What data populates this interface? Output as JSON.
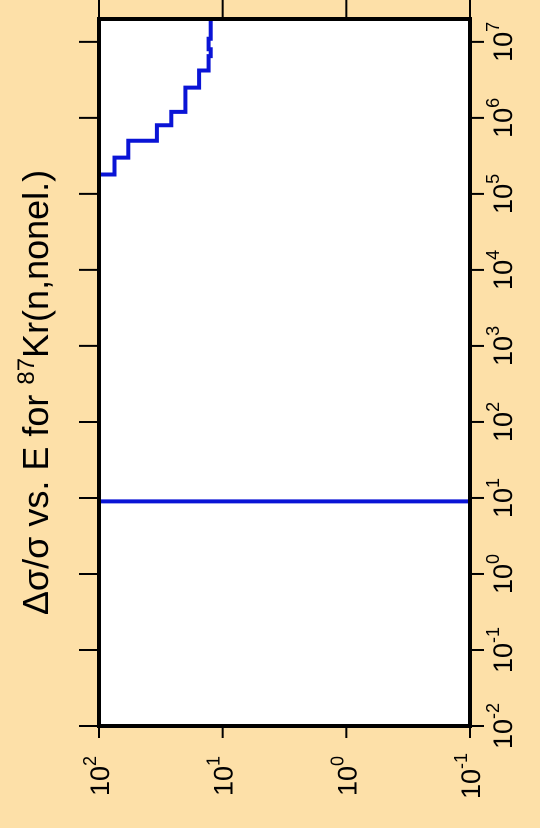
{
  "chart_data": {
    "type": "line",
    "orientation": "rotated-90-ccw",
    "title": {
      "prefix": "Δσ/σ vs. E for ",
      "isotope_mass": "87",
      "element": "Kr",
      "reaction": "(n,nonel.)"
    },
    "x_axis": {
      "scale": "log",
      "range": [
        0.01,
        20000000
      ],
      "tick_labels": [
        {
          "base": "10",
          "exp": "-2",
          "value": 0.01
        },
        {
          "base": "10",
          "exp": "-1",
          "value": 0.1
        },
        {
          "base": "10",
          "exp": "0",
          "value": 1
        },
        {
          "base": "10",
          "exp": "1",
          "value": 10
        },
        {
          "base": "10",
          "exp": "2",
          "value": 100
        },
        {
          "base": "10",
          "exp": "3",
          "value": 1000
        },
        {
          "base": "10",
          "exp": "4",
          "value": 10000
        },
        {
          "base": "10",
          "exp": "5",
          "value": 100000
        },
        {
          "base": "10",
          "exp": "6",
          "value": 1000000
        },
        {
          "base": "10",
          "exp": "7",
          "value": 10000000
        }
      ]
    },
    "y_axis": {
      "scale": "log",
      "range": [
        0.1,
        100
      ],
      "tick_labels": [
        {
          "base": "10",
          "exp": "-1",
          "value": 0.1
        },
        {
          "base": "10",
          "exp": "0",
          "value": 1
        },
        {
          "base": "10",
          "exp": "1",
          "value": 10
        },
        {
          "base": "10",
          "exp": "2",
          "value": 100
        }
      ]
    },
    "series": [
      {
        "color": "#0a14d6",
        "points": [
          [
            0.01,
            0.1
          ],
          [
            9,
            0.1
          ],
          [
            9,
            100
          ],
          [
            180000,
            100
          ],
          [
            180000,
            75
          ],
          [
            300000,
            75
          ],
          [
            300000,
            58
          ],
          [
            500000,
            58
          ],
          [
            500000,
            34
          ],
          [
            800000,
            34
          ],
          [
            800000,
            26
          ],
          [
            1200000,
            26
          ],
          [
            1200000,
            20
          ],
          [
            2500000,
            20
          ],
          [
            2500000,
            15.5
          ],
          [
            4200000,
            15.5
          ],
          [
            4200000,
            13
          ],
          [
            6500000,
            13
          ],
          [
            6500000,
            12.5
          ],
          [
            8000000,
            12.5
          ],
          [
            8000000,
            13
          ],
          [
            11000000,
            13
          ],
          [
            11000000,
            12.5
          ],
          [
            20000000,
            12.5
          ]
        ]
      }
    ]
  }
}
